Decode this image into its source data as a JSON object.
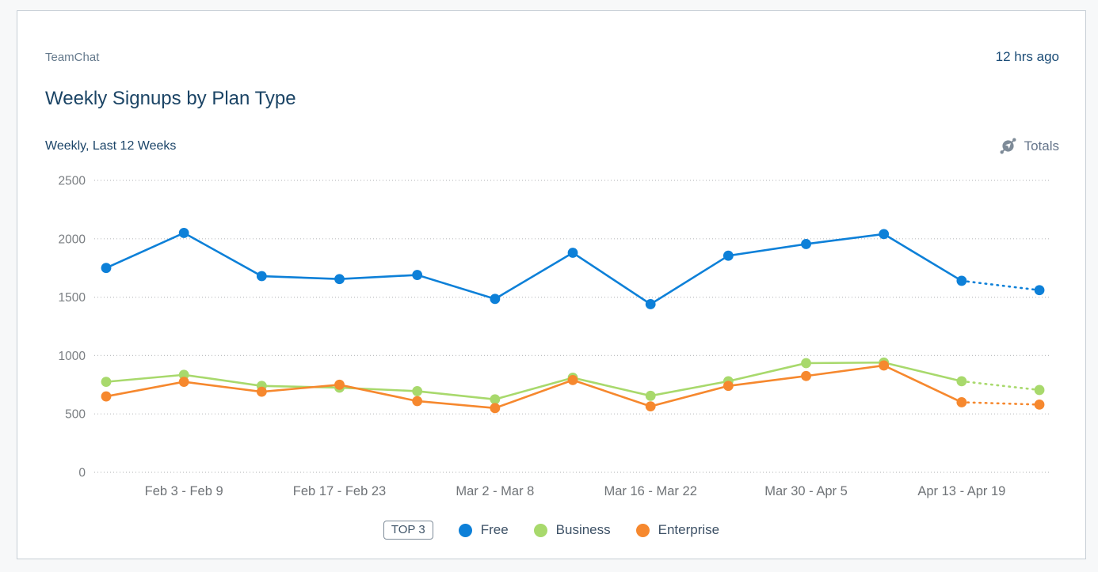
{
  "card": {
    "app_name": "TeamChat",
    "timestamp": "12 hrs ago",
    "title": "Weekly Signups by Plan Type",
    "subtitle": "Weekly, Last 12 Weeks",
    "totals_label": "Totals"
  },
  "legend": {
    "chip": "TOP 3",
    "items": [
      {
        "name": "Free",
        "color": "#0d80d8"
      },
      {
        "name": "Business",
        "color": "#a8d96c"
      },
      {
        "name": "Enterprise",
        "color": "#f6882e"
      }
    ]
  },
  "chart_data": {
    "type": "line",
    "title": "Weekly Signups by Plan Type",
    "subtitle": "Weekly, Last 12 Weeks",
    "ylim": [
      0,
      2500
    ],
    "y_ticks": [
      0,
      500,
      1000,
      1500,
      2000,
      2500
    ],
    "grid": "dotted horizontal gridlines",
    "legend_position": "bottom",
    "num_points": 13,
    "last_point_projected_dotted": true,
    "x_tick_labels": [
      {
        "point_index": 1,
        "label": "Feb 3 - Feb 9"
      },
      {
        "point_index": 3,
        "label": "Feb 17 - Feb 23"
      },
      {
        "point_index": 5,
        "label": "Mar 2 - Mar 8"
      },
      {
        "point_index": 7,
        "label": "Mar 16 - Mar 22"
      },
      {
        "point_index": 9,
        "label": "Mar 30 - Apr 5"
      },
      {
        "point_index": 11,
        "label": "Apr 13 - Apr 19"
      }
    ],
    "series": [
      {
        "name": "Free",
        "color": "#0d80d8",
        "values": [
          1750,
          2050,
          1680,
          1655,
          1690,
          1485,
          1880,
          1440,
          1855,
          1955,
          2040,
          1640
        ],
        "projected_next": 1560
      },
      {
        "name": "Business",
        "color": "#a8d96c",
        "values": [
          775,
          835,
          740,
          725,
          695,
          625,
          810,
          655,
          780,
          935,
          940,
          780
        ],
        "projected_next": 705
      },
      {
        "name": "Enterprise",
        "color": "#f6882e",
        "values": [
          650,
          775,
          690,
          750,
          610,
          550,
          790,
          565,
          740,
          825,
          915,
          600
        ],
        "projected_next": 580
      }
    ]
  }
}
